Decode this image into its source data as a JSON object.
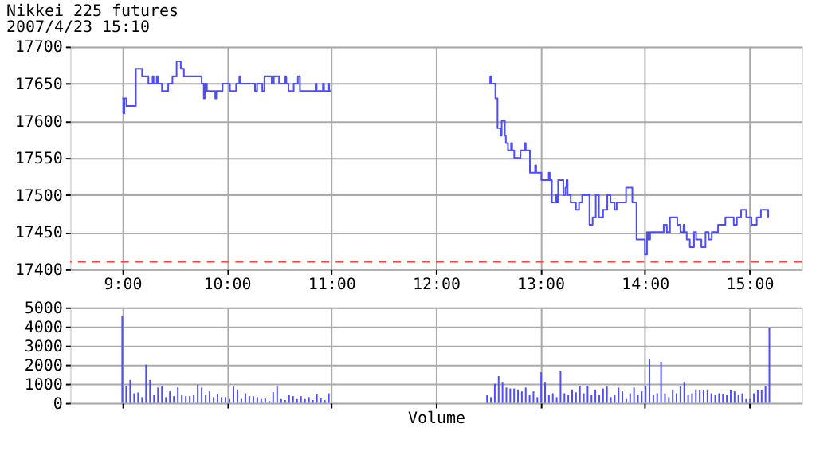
{
  "chart_data": [
    {
      "type": "step",
      "title": "Nikkei 225 futures",
      "subtitle": "2007/4/23 15:10",
      "xlim": [
        8.5,
        15.5
      ],
      "xticks": [
        {
          "value": 9,
          "label": "9:00"
        },
        {
          "value": 10,
          "label": "10:00"
        },
        {
          "value": 11,
          "label": "11:00"
        },
        {
          "value": 12,
          "label": "12:00"
        },
        {
          "value": 13,
          "label": "13:00"
        },
        {
          "value": 14,
          "label": "14:00"
        },
        {
          "value": 15,
          "label": "15:00"
        }
      ],
      "ylim": [
        17400,
        17700
      ],
      "yticks": [
        17400,
        17450,
        17500,
        17550,
        17600,
        17650,
        17700
      ],
      "grid": true,
      "ref_lines": [
        {
          "axis": "y",
          "value": 17410,
          "color": "#ff4040",
          "line_style": "dashed"
        }
      ],
      "series": [
        {
          "color": "#4d4dff",
          "x": [
            9.0,
            9.01,
            9.02,
            9.04,
            9.13,
            9.19,
            9.25,
            9.29,
            9.3,
            9.33,
            9.34,
            9.38,
            9.44,
            9.48,
            9.52,
            9.56,
            9.59,
            9.76,
            9.78,
            9.79,
            9.81,
            9.89,
            9.9,
            9.96,
            10.03,
            10.09,
            10.12,
            10.13,
            10.27,
            10.29,
            10.34,
            10.36,
            10.43,
            10.45,
            10.5,
            10.56,
            10.57,
            10.59,
            10.64,
            10.68,
            10.7,
            10.85,
            10.86,
            10.92,
            10.93,
            10.97,
            10.98,
            11.0,
            11.5,
            12.51,
            12.52,
            12.53,
            12.57,
            12.59,
            12.62,
            12.63,
            12.66,
            12.67,
            12.69,
            12.72,
            12.73,
            12.75,
            12.81,
            12.85,
            12.86,
            12.9,
            12.95,
            12.96,
            13.01,
            13.08,
            13.09,
            13.11,
            13.15,
            13.16,
            13.17,
            13.22,
            13.24,
            13.25,
            13.26,
            13.29,
            13.34,
            13.37,
            13.4,
            13.47,
            13.5,
            13.53,
            13.56,
            13.6,
            13.64,
            13.67,
            13.71,
            13.73,
            13.77,
            13.82,
            13.88,
            13.92,
            14.0,
            14.02,
            14.03,
            14.05,
            14.12,
            14.18,
            14.21,
            14.24,
            14.31,
            14.34,
            14.37,
            14.38,
            14.4,
            14.43,
            14.47,
            14.49,
            14.54,
            14.58,
            14.61,
            14.64,
            14.7,
            14.77,
            14.85,
            14.88,
            14.92,
            14.97,
            15.02,
            15.07,
            15.11,
            15.18
          ],
          "values": [
            17630,
            17610,
            17630,
            17620,
            17670,
            17660,
            17650,
            17660,
            17650,
            17660,
            17650,
            17640,
            17650,
            17660,
            17680,
            17670,
            17660,
            17650,
            17630,
            17650,
            17640,
            17630,
            17640,
            17650,
            17640,
            17650,
            17660,
            17650,
            17640,
            17650,
            17640,
            17660,
            17650,
            17660,
            17650,
            17660,
            17650,
            17640,
            17650,
            17660,
            17640,
            17650,
            17640,
            17650,
            17640,
            17650,
            17640,
            17640,
            null,
            17650,
            17660,
            17650,
            17630,
            17590,
            17580,
            17600,
            17580,
            17570,
            17560,
            17570,
            17560,
            17550,
            17560,
            17570,
            17560,
            17530,
            17540,
            17530,
            17520,
            17530,
            17520,
            17490,
            17500,
            17490,
            17520,
            17500,
            17510,
            17520,
            17500,
            17490,
            17480,
            17490,
            17500,
            17460,
            17470,
            17500,
            17470,
            17480,
            17500,
            17490,
            17480,
            17490,
            17490,
            17510,
            17490,
            17440,
            17420,
            17450,
            17440,
            17450,
            17450,
            17460,
            17450,
            17470,
            17460,
            17450,
            17460,
            17450,
            17440,
            17430,
            17450,
            17440,
            17430,
            17450,
            17440,
            17450,
            17460,
            17470,
            17460,
            17470,
            17480,
            17470,
            17460,
            17470,
            17480,
            17470
          ]
        }
      ]
    },
    {
      "type": "bar",
      "xlabel": "Volume",
      "tick_labels": "y",
      "xlim": [
        8.5,
        15.5
      ],
      "xticks": [
        {
          "value": 9,
          "label": null
        },
        {
          "value": 10,
          "label": null
        },
        {
          "value": 11,
          "label": null
        },
        {
          "value": 12,
          "label": null
        },
        {
          "value": 13,
          "label": null
        },
        {
          "value": 14,
          "label": null
        },
        {
          "value": 15,
          "label": null
        }
      ],
      "ylim": [
        0,
        5000
      ],
      "yticks": [
        0,
        1000,
        2000,
        3000,
        4000,
        5000
      ],
      "grid": true,
      "series": [
        {
          "color": "#4d4dff",
          "x": [
            9.0,
            9.038,
            9.076,
            9.114,
            9.152,
            9.19,
            9.228,
            9.266,
            9.304,
            9.342,
            9.38,
            9.418,
            9.456,
            9.494,
            9.532,
            9.57,
            9.608,
            9.646,
            9.684,
            9.722,
            9.76,
            9.798,
            9.836,
            9.874,
            9.912,
            9.95,
            9.988,
            10.026,
            10.064,
            10.102,
            10.14,
            10.178,
            10.216,
            10.254,
            10.292,
            10.33,
            10.368,
            10.406,
            10.444,
            10.482,
            10.52,
            10.558,
            10.596,
            10.634,
            10.672,
            10.71,
            10.748,
            10.786,
            10.824,
            10.862,
            10.9,
            10.938,
            10.976,
            12.49,
            12.527,
            12.564,
            12.601,
            12.638,
            12.675,
            12.712,
            12.749,
            12.786,
            12.823,
            12.86,
            12.897,
            12.934,
            12.971,
            13.008,
            13.045,
            13.082,
            13.119,
            13.156,
            13.193,
            13.23,
            13.267,
            13.304,
            13.341,
            13.378,
            13.415,
            13.452,
            13.489,
            13.526,
            13.563,
            13.6,
            13.637,
            13.674,
            13.711,
            13.748,
            13.785,
            13.822,
            13.859,
            13.896,
            13.933,
            13.97,
            14.007,
            14.044,
            14.081,
            14.118,
            14.155,
            14.192,
            14.229,
            14.266,
            14.303,
            14.34,
            14.377,
            14.414,
            14.451,
            14.488,
            14.525,
            14.562,
            14.599,
            14.636,
            14.673,
            14.71,
            14.747,
            14.784,
            14.821,
            14.858,
            14.895,
            14.932,
            14.969,
            15.006,
            15.043,
            15.08,
            15.117,
            15.154,
            15.191
          ],
          "values": [
            4550,
            900,
            1200,
            500,
            550,
            300,
            2000,
            1200,
            400,
            800,
            900,
            300,
            600,
            350,
            800,
            400,
            350,
            350,
            400,
            950,
            800,
            400,
            600,
            300,
            450,
            300,
            300,
            200,
            850,
            700,
            200,
            500,
            350,
            350,
            300,
            200,
            250,
            100,
            550,
            850,
            200,
            150,
            400,
            350,
            200,
            350,
            200,
            300,
            150,
            450,
            250,
            150,
            500,
            400,
            300,
            1000,
            1400,
            1100,
            800,
            750,
            750,
            700,
            600,
            800,
            400,
            600,
            300,
            1600,
            1100,
            400,
            500,
            300,
            1650,
            500,
            400,
            700,
            550,
            900,
            500,
            900,
            400,
            700,
            400,
            750,
            850,
            300,
            400,
            800,
            600,
            200,
            500,
            800,
            400,
            600,
            900,
            2300,
            400,
            500,
            2150,
            500,
            300,
            700,
            500,
            900,
            1100,
            400,
            500,
            700,
            650,
            650,
            700,
            500,
            400,
            500,
            450,
            400,
            650,
            600,
            400,
            500,
            200,
            200,
            500,
            650,
            650,
            900,
            3950
          ]
        }
      ]
    }
  ]
}
